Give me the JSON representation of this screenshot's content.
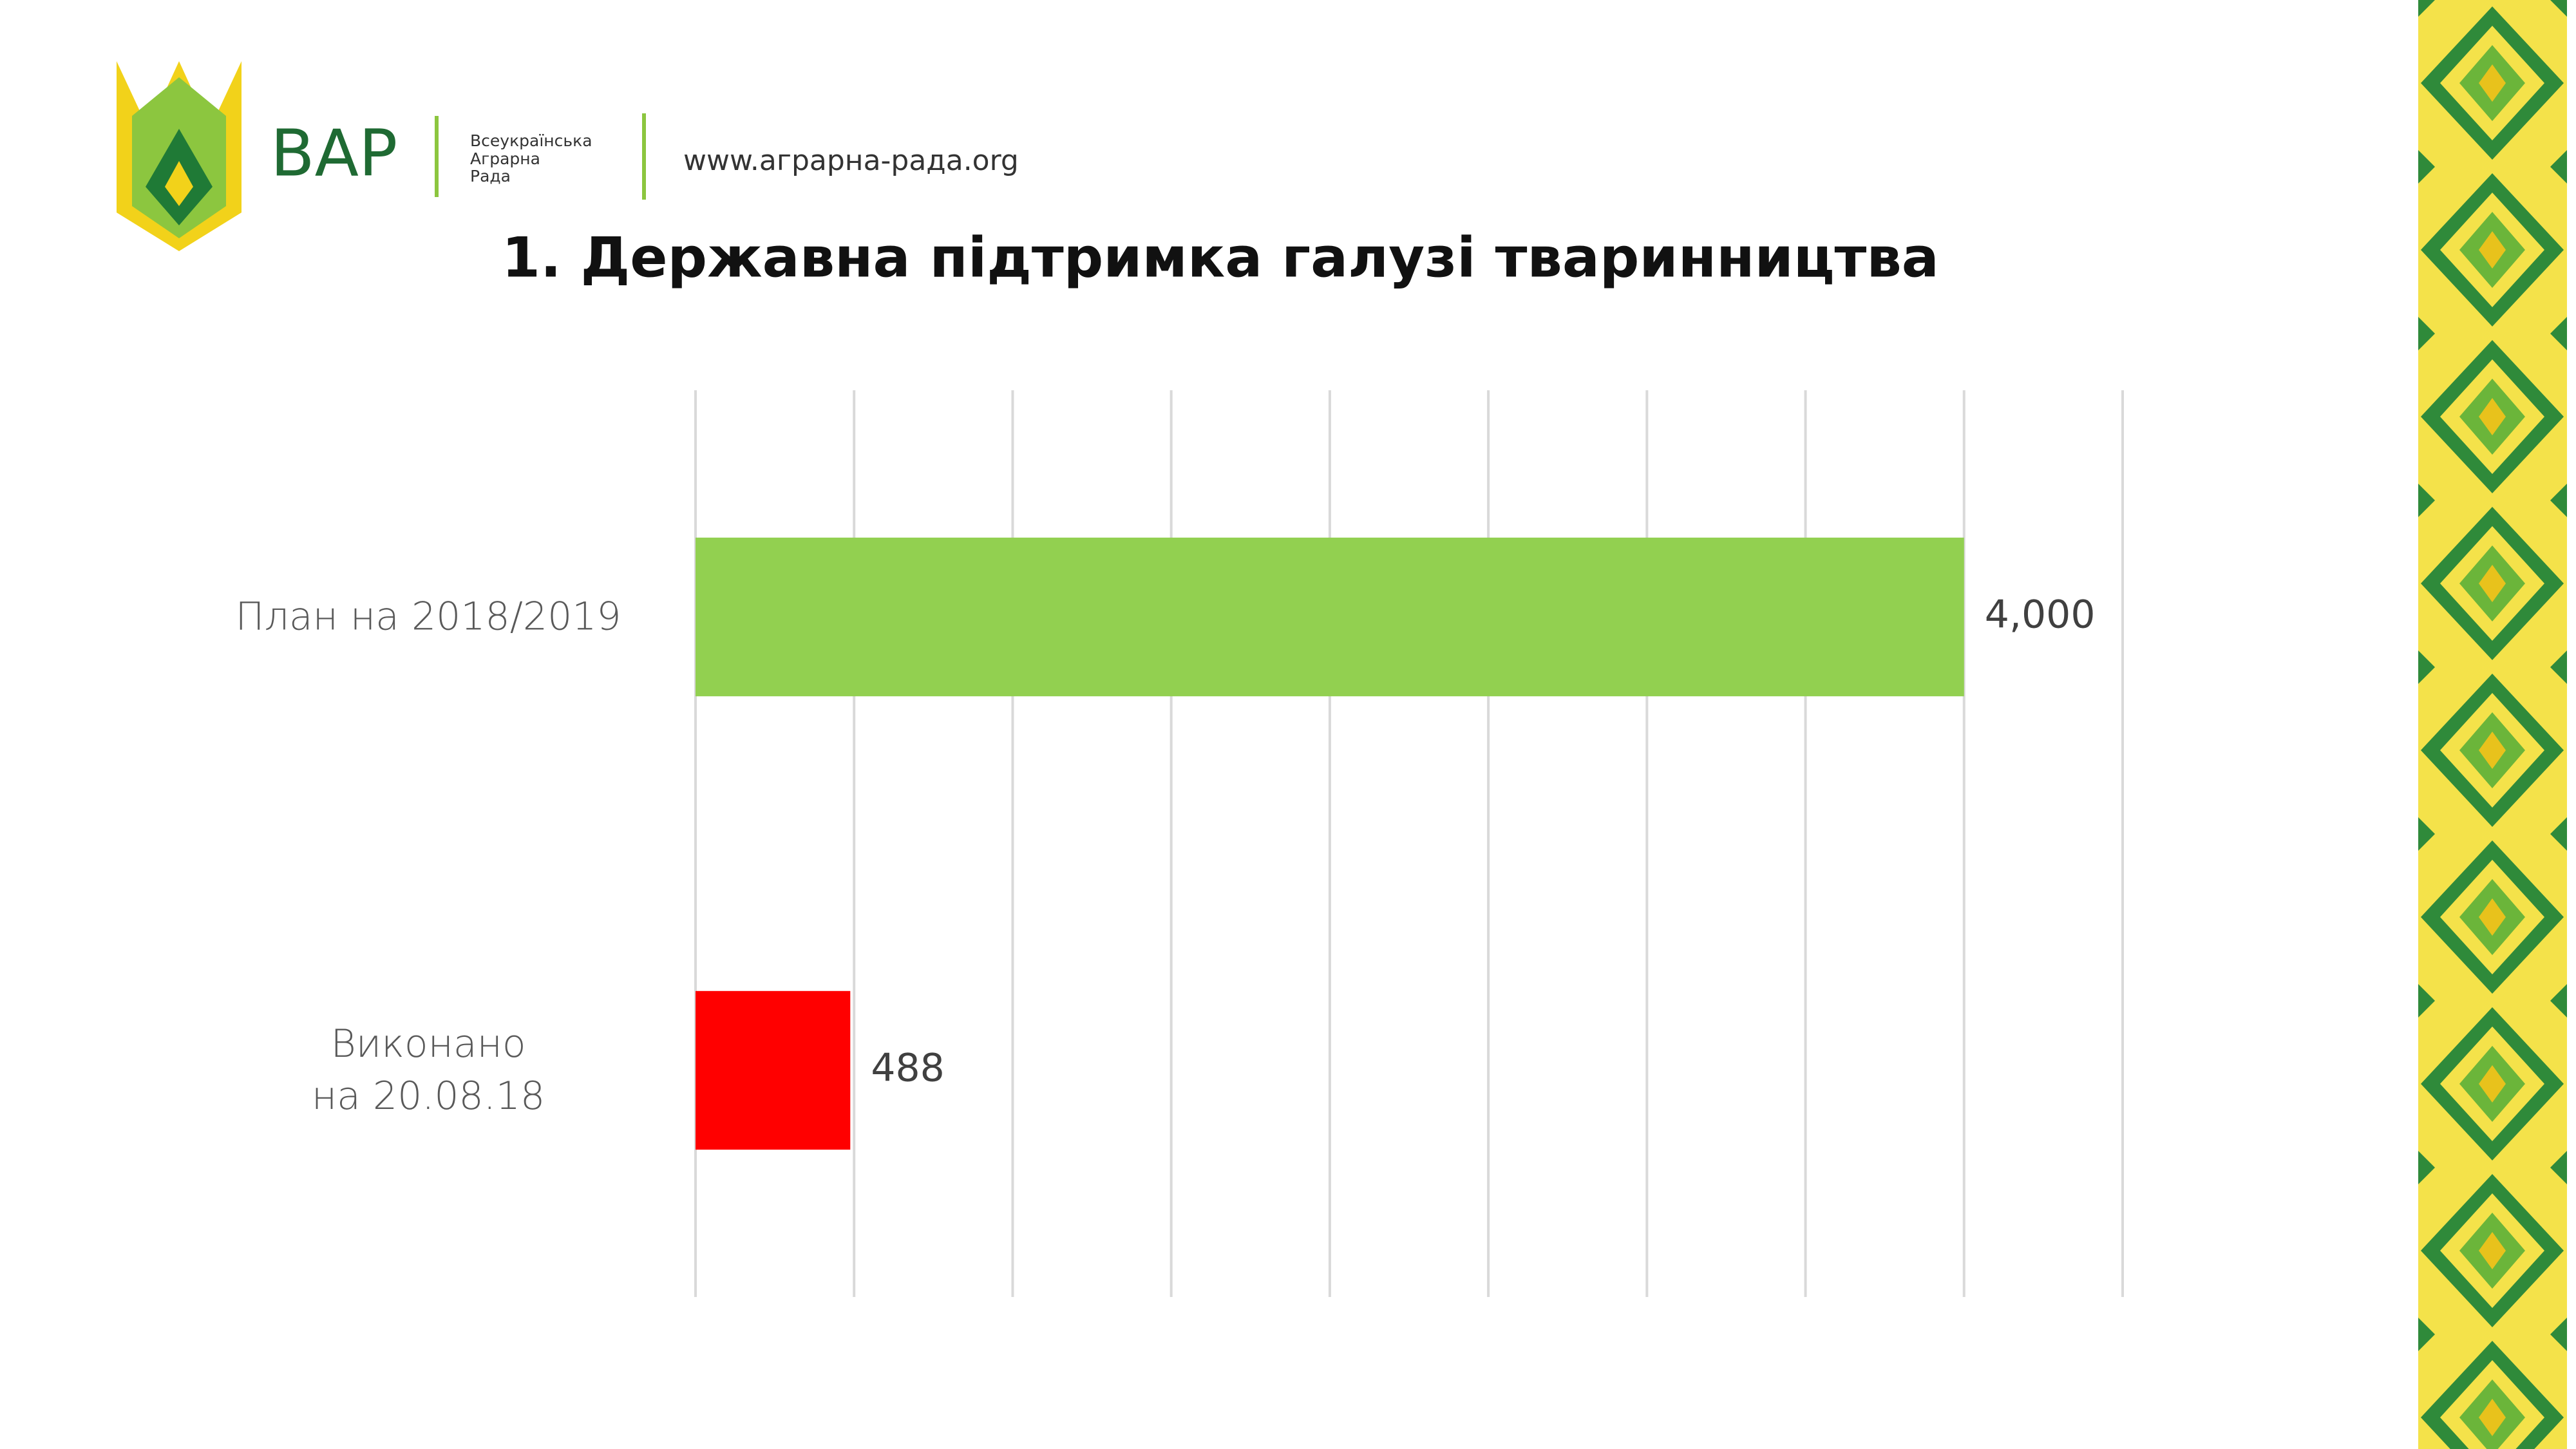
{
  "header": {
    "logo_text": "ВАР",
    "logo_subtitle": "Всеукраїнська\nАграрна\nРада",
    "website": "www.аграрна-рада.org"
  },
  "chart_data": {
    "type": "bar",
    "orientation": "horizontal",
    "title": "1. Державна підтримка галузі тваринництва",
    "categories": [
      "План на 2018/2019",
      "Виконано\nна 20.08.18"
    ],
    "values": [
      4000,
      488
    ],
    "value_labels": [
      "4,000",
      "488"
    ],
    "colors": [
      "#92d050",
      "#ff0000"
    ],
    "xlim": [
      0,
      4500
    ],
    "xticks": [
      0,
      500,
      1000,
      1500,
      2000,
      2500,
      3000,
      3500,
      4000,
      4500
    ],
    "grid": true
  }
}
